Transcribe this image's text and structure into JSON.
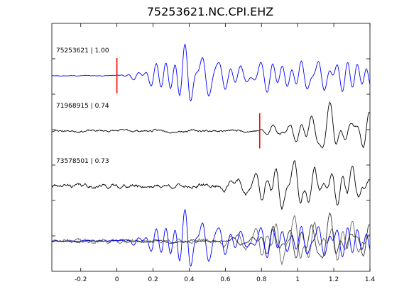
{
  "chart_data": {
    "type": "line",
    "title": "75253621.NC.CPI.EHZ",
    "xlabel": "",
    "ylabel": "",
    "xlim": [
      -0.36,
      1.4
    ],
    "x_ticks": [
      -0.2,
      0,
      0.2,
      0.4,
      0.6,
      0.8,
      1,
      1.2,
      1.4
    ],
    "x_tick_labels": [
      "-0.2",
      "0",
      "0.2",
      "0.4",
      "0.6",
      "0.8",
      "1",
      "1.2",
      "1.4"
    ],
    "y_tick_count": 6,
    "grid": false,
    "legend": "none",
    "colors": {
      "reference": "#0000ff",
      "match": "#000000",
      "overlay_match_1": "#333333",
      "overlay_match_2": "#666666",
      "pick": "#ff0000"
    },
    "series": [
      {
        "label": "75253621 | 1.00",
        "color": "reference",
        "pick_time": 0.0,
        "onset": 0.02,
        "amp": 1.0,
        "seed": 7,
        "noise": 0.02
      },
      {
        "label": "71968915 | 0.74",
        "color": "match",
        "pick_time": 0.79,
        "onset": 0.75,
        "amp": 1.0,
        "seed": 23,
        "noise": 0.05
      },
      {
        "label": "73578501 | 0.73",
        "color": "match",
        "onset": 0.55,
        "amp": 1.0,
        "seed": 41,
        "noise": 0.09
      }
    ],
    "overlay": {
      "traces": [
        {
          "color": "overlay_match_2",
          "onset": 0.55,
          "amp": 1.0,
          "seed": 41,
          "noise": 0.09
        },
        {
          "color": "overlay_match_1",
          "onset": 0.6,
          "amp": 1.0,
          "seed": 23,
          "noise": 0.05
        },
        {
          "color": "reference",
          "onset": 0.02,
          "amp": 1.0,
          "seed": 7,
          "noise": 0.02
        }
      ]
    }
  }
}
